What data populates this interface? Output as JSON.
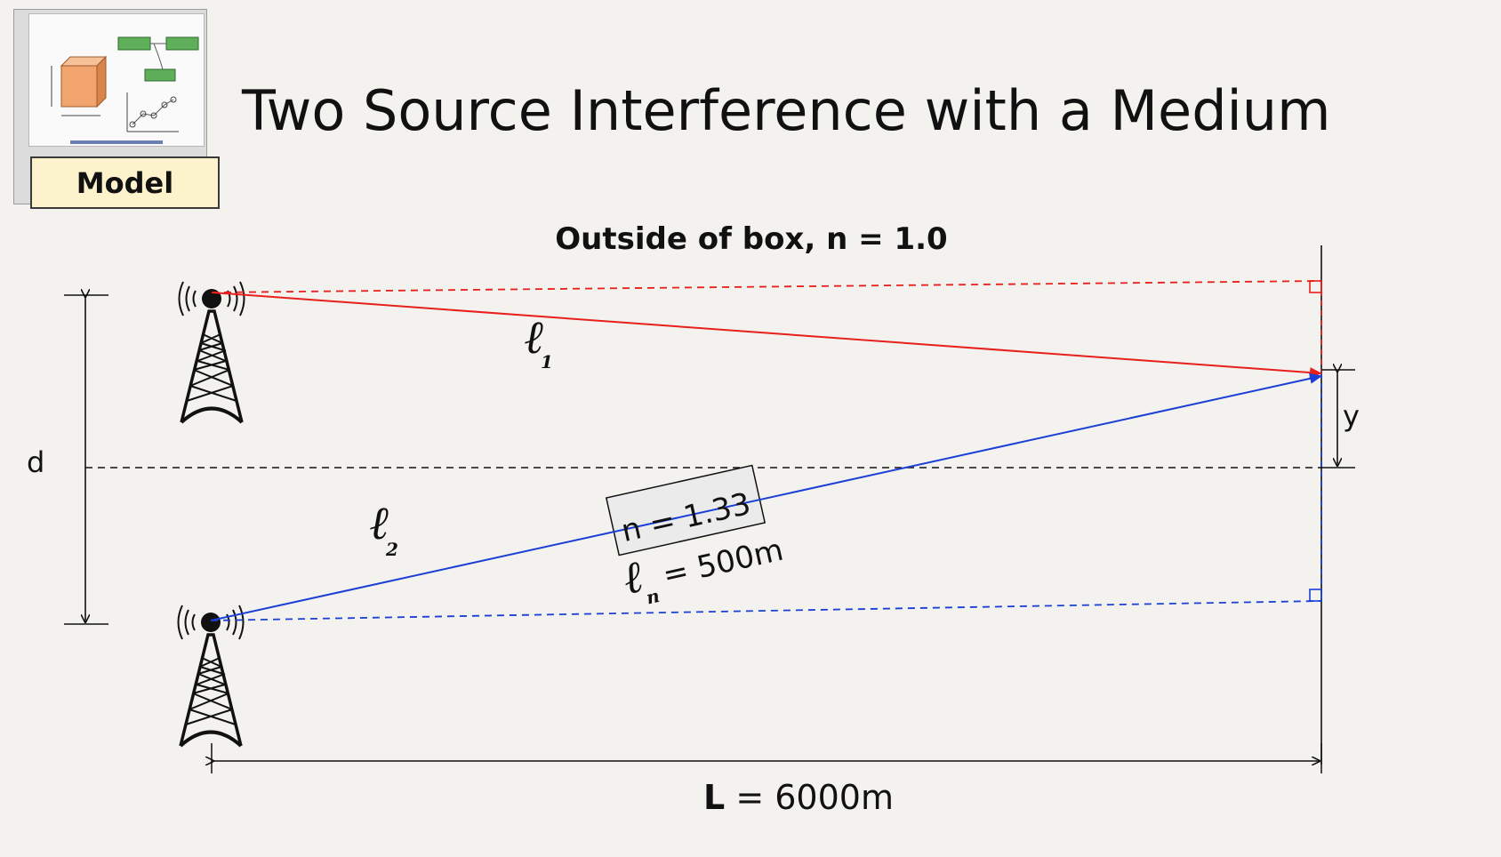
{
  "title": "Two Source Interference with a Medium",
  "model_badge": {
    "label": "Model"
  },
  "diagram": {
    "outside_label": "Outside of box, n = 1.0",
    "path1_label": "ℓ",
    "path1_subscript": "1",
    "path2_label": "ℓ",
    "path2_subscript": "2",
    "medium_n_label": "n = 1.33",
    "medium_len_symbol": "ℓ",
    "medium_len_subscript": "n",
    "medium_len_value": "= 500m",
    "d_label": "d",
    "y_label": "y",
    "L_bold": "L",
    "L_rest": " = 6000m",
    "colors": {
      "path1": "#e8201c",
      "path2": "#1a3fd6",
      "ink": "#111111",
      "medium_fill": "#ebebeb"
    }
  }
}
